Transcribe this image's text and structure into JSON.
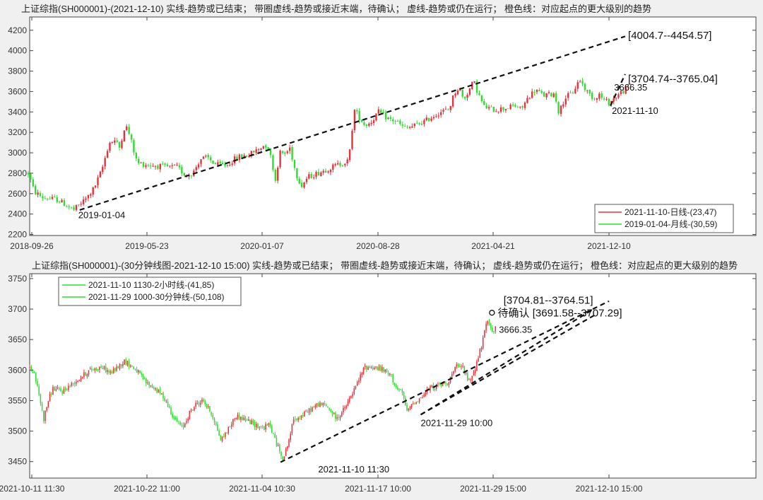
{
  "chart_data": [
    {
      "type": "candlestick",
      "title": "上证综指(SH000001)-(2021-12-10)   实线-趋势或已结束；  带圈虚线-趋势或接近末端，待确认；  虚线-趋势或仍在运行；   橙色线：对应起点的更大级别的趋势",
      "x_ticks": [
        "2018-09-26",
        "2019-05-23",
        "2020-01-07",
        "2020-08-28",
        "2021-04-21",
        "2021-12-10"
      ],
      "y_ticks": [
        2200,
        2400,
        2600,
        2800,
        3000,
        3200,
        3400,
        3600,
        3800,
        4000,
        4200
      ],
      "ylim": [
        2190,
        4330
      ],
      "x_range_bars": 790,
      "price_path_anchors": [
        [
          0,
          2800
        ],
        [
          8,
          2620
        ],
        [
          20,
          2560
        ],
        [
          40,
          2540
        ],
        [
          62,
          2440
        ],
        [
          80,
          2560
        ],
        [
          90,
          2660
        ],
        [
          100,
          2830
        ],
        [
          110,
          3100
        ],
        [
          118,
          3120
        ],
        [
          124,
          3050
        ],
        [
          132,
          3280
        ],
        [
          138,
          3170
        ],
        [
          148,
          2900
        ],
        [
          165,
          2880
        ],
        [
          188,
          2860
        ],
        [
          202,
          2860
        ],
        [
          214,
          2780
        ],
        [
          224,
          2800
        ],
        [
          234,
          2940
        ],
        [
          244,
          2950
        ],
        [
          256,
          2880
        ],
        [
          270,
          2880
        ],
        [
          285,
          2960
        ],
        [
          300,
          2980
        ],
        [
          314,
          3040
        ],
        [
          322,
          3080
        ],
        [
          326,
          3060
        ],
        [
          332,
          2900
        ],
        [
          336,
          2720
        ],
        [
          342,
          3000
        ],
        [
          350,
          2990
        ],
        [
          356,
          3050
        ],
        [
          364,
          2800
        ],
        [
          372,
          2680
        ],
        [
          380,
          2760
        ],
        [
          400,
          2820
        ],
        [
          420,
          2880
        ],
        [
          436,
          2920
        ],
        [
          440,
          3200
        ],
        [
          444,
          3420
        ],
        [
          450,
          3350
        ],
        [
          458,
          3270
        ],
        [
          466,
          3300
        ],
        [
          476,
          3400
        ],
        [
          490,
          3330
        ],
        [
          500,
          3310
        ],
        [
          512,
          3240
        ],
        [
          520,
          3250
        ],
        [
          540,
          3310
        ],
        [
          560,
          3400
        ],
        [
          572,
          3420
        ],
        [
          580,
          3590
        ],
        [
          586,
          3640
        ],
        [
          592,
          3520
        ],
        [
          600,
          3620
        ],
        [
          606,
          3700
        ],
        [
          612,
          3580
        ],
        [
          620,
          3450
        ],
        [
          634,
          3420
        ],
        [
          650,
          3440
        ],
        [
          664,
          3460
        ],
        [
          670,
          3420
        ],
        [
          680,
          3540
        ],
        [
          690,
          3620
        ],
        [
          700,
          3560
        ],
        [
          716,
          3580
        ],
        [
          722,
          3390
        ],
        [
          730,
          3540
        ],
        [
          740,
          3580
        ],
        [
          750,
          3720
        ],
        [
          760,
          3600
        ],
        [
          770,
          3530
        ],
        [
          776,
          3580
        ],
        [
          782,
          3520
        ],
        [
          790,
          3490
        ],
        [
          798,
          3540
        ],
        [
          806,
          3590
        ],
        [
          812,
          3620
        ],
        [
          816,
          3640
        ]
      ],
      "trend_lines": [
        {
          "label": "2019-01-04",
          "from": [
            70,
            2440
          ],
          "to": [
            812,
            4140
          ]
        },
        {
          "label": "2021-11-10",
          "from": [
            792,
            3460
          ],
          "to": [
            812,
            3770
          ]
        }
      ],
      "annotations": [
        {
          "text": "[4004.7--4454.57]",
          "x": 816,
          "y": 4115
        },
        {
          "text": "[3704.74--3765.04]",
          "x": 816,
          "y": 3690
        },
        {
          "text": "3666.35",
          "x": 797,
          "y": 3610
        },
        {
          "text": "2019-01-04",
          "x": 68,
          "y": 2360
        },
        {
          "text": "2021-11-10",
          "x": 794,
          "y": 3380
        }
      ],
      "legend_position": "bottom-right",
      "legend": [
        {
          "name": "2021-11-10-日线-(23,47)",
          "color": "#e8303a"
        },
        {
          "name": "2019-01-04-月线-(30,59)",
          "color": "#33dd33"
        }
      ]
    },
    {
      "type": "candlestick",
      "title": "上证综指(SH000001)-(30分钟线图-2021-12-10 15:00)  实线-趋势或已结束；  带圈虚线-趋势或接近末端，待确认；  虚线-趋势或仍在运行；  橙色线：对应起点的更大级别的趋势",
      "x_ticks": [
        "2021-10-11 11:30",
        "2021-10-22 11:00",
        "2021-11-04 10:30",
        "2021-11-17 10:00",
        "2021-11-29 15:00",
        "2021-12-10 15:00"
      ],
      "y_ticks": [
        3450,
        3500,
        3550,
        3600,
        3650,
        3700,
        3750
      ],
      "ylim": [
        3423,
        3758
      ],
      "x_range_bars": 1000,
      "price_path_anchors": [
        [
          0,
          3605
        ],
        [
          8,
          3595
        ],
        [
          16,
          3560
        ],
        [
          24,
          3520
        ],
        [
          32,
          3550
        ],
        [
          40,
          3570
        ],
        [
          56,
          3565
        ],
        [
          70,
          3575
        ],
        [
          84,
          3585
        ],
        [
          104,
          3600
        ],
        [
          124,
          3605
        ],
        [
          140,
          3595
        ],
        [
          164,
          3615
        ],
        [
          184,
          3600
        ],
        [
          200,
          3580
        ],
        [
          216,
          3570
        ],
        [
          232,
          3555
        ],
        [
          250,
          3520
        ],
        [
          264,
          3505
        ],
        [
          276,
          3530
        ],
        [
          288,
          3545
        ],
        [
          300,
          3550
        ],
        [
          316,
          3525
        ],
        [
          330,
          3485
        ],
        [
          344,
          3505
        ],
        [
          356,
          3525
        ],
        [
          370,
          3520
        ],
        [
          390,
          3510
        ],
        [
          404,
          3505
        ],
        [
          414,
          3512
        ],
        [
          422,
          3490
        ],
        [
          430,
          3470
        ],
        [
          438,
          3455
        ],
        [
          446,
          3480
        ],
        [
          456,
          3520
        ],
        [
          470,
          3525
        ],
        [
          484,
          3535
        ],
        [
          500,
          3545
        ],
        [
          514,
          3540
        ],
        [
          530,
          3520
        ],
        [
          546,
          3540
        ],
        [
          564,
          3575
        ],
        [
          578,
          3605
        ],
        [
          594,
          3605
        ],
        [
          610,
          3600
        ],
        [
          624,
          3590
        ],
        [
          634,
          3570
        ],
        [
          644,
          3560
        ],
        [
          652,
          3530
        ],
        [
          660,
          3545
        ],
        [
          676,
          3555
        ],
        [
          690,
          3570
        ],
        [
          706,
          3575
        ],
        [
          722,
          3580
        ],
        [
          736,
          3605
        ],
        [
          748,
          3605
        ],
        [
          758,
          3580
        ],
        [
          768,
          3600
        ],
        [
          780,
          3640
        ],
        [
          790,
          3680
        ],
        [
          800,
          3665
        ],
        [
          804,
          3668
        ]
      ],
      "trend_lines": [
        {
          "label": "2021-11-10 11:30",
          "from": [
            433,
            3449
          ],
          "to": [
            1000,
            3713
          ]
        },
        {
          "label": "2021-11-29 10:00",
          "from": [
            675,
            3527
          ],
          "to": [
            975,
            3701
          ]
        },
        {
          "label": "2021-11-29 10:00",
          "from": [
            675,
            3527
          ],
          "to": [
            975,
            3690
          ]
        }
      ],
      "annotations": [
        {
          "text": "[3704.81--3764.51]",
          "x": 818,
          "y": 3709
        },
        {
          "text": "待确认 [3691.58--3707.29]",
          "x": 808,
          "y": 3688
        },
        {
          "text": "3666.35",
          "x": 810,
          "y": 3661
        },
        {
          "text": "2021-11-10 11:30",
          "x": 498,
          "y": 3432
        },
        {
          "text": "2021-11-29 10:00",
          "x": 675,
          "y": 3508
        }
      ],
      "legend_position": "top-left",
      "legend": [
        {
          "name": "2021-11-10 1130-2小时线-(41,85)",
          "color": "#33dd33"
        },
        {
          "name": "2021-11-29 1000-30分钟线-(50,108)",
          "color": "#33dd33"
        }
      ]
    }
  ]
}
